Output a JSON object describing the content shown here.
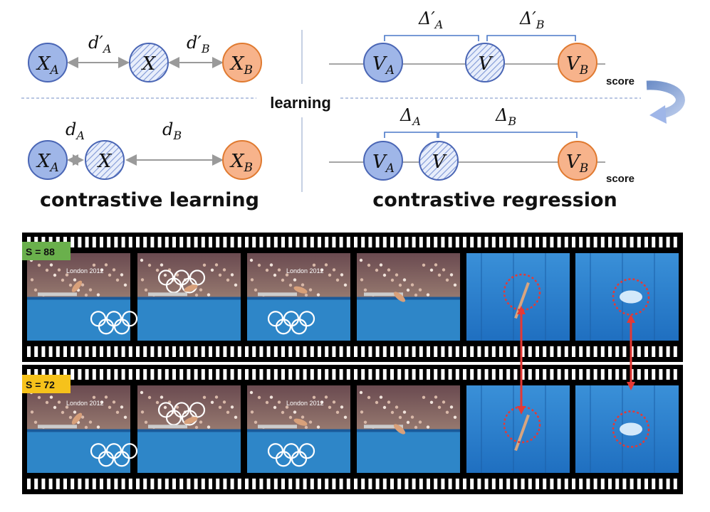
{
  "top": {
    "left_panel_caption": "contrastive learning",
    "right_panel_caption": "contrastive regression",
    "center_label": "learning",
    "score_label": "score",
    "learning_top": {
      "nodes": {
        "a": "X",
        "a_sub": "A",
        "mid": "X",
        "b": "X",
        "b_sub": "B"
      },
      "dist_a": "d′",
      "dist_a_sub": "A",
      "dist_b": "d′",
      "dist_b_sub": "B"
    },
    "learning_bottom": {
      "nodes": {
        "a": "X",
        "a_sub": "A",
        "mid": "X",
        "b": "X",
        "b_sub": "B"
      },
      "dist_a": "d",
      "dist_a_sub": "A",
      "dist_b": "d",
      "dist_b_sub": "B"
    },
    "regression_top": {
      "nodes": {
        "a": "V",
        "a_sub": "A",
        "mid": "V",
        "b": "V",
        "b_sub": "B"
      },
      "delta_a": "Δ′",
      "delta_a_sub": "A",
      "delta_b": "Δ′",
      "delta_b_sub": "B"
    },
    "regression_bottom": {
      "nodes": {
        "a": "V",
        "a_sub": "A",
        "mid": "V",
        "b": "V",
        "b_sub": "B"
      },
      "delta_a": "Δ",
      "delta_a_sub": "A",
      "delta_b": "Δ",
      "delta_b_sub": "B"
    }
  },
  "films": {
    "strip1": {
      "score_badge": "S = 88",
      "badge_color": "#6ab04c",
      "frame_count": 6
    },
    "strip2": {
      "score_badge": "S = 72",
      "badge_color": "#f6c21b",
      "frame_count": 6
    }
  },
  "frame_text": {
    "london_2012": "London 2012"
  },
  "colors": {
    "blue_node": "#9fb6e8",
    "blue_stroke": "#4a66b5",
    "orange_node": "#f7b38b",
    "orange_stroke": "#e07a30",
    "bracket": "#4a78c8",
    "highlight": "#e53935"
  }
}
